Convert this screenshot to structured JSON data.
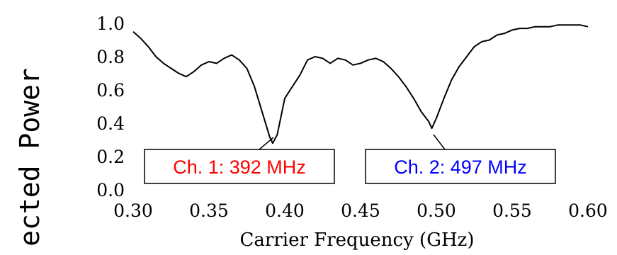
{
  "chart_data": {
    "type": "line",
    "title": "",
    "xlabel": "Carrier Frequency (GHz)",
    "ylabel": "ected Power",
    "xlim": [
      0.3,
      0.6
    ],
    "ylim": [
      0.0,
      1.0
    ],
    "x_ticks": [
      "0.30",
      "0.35",
      "0.40",
      "0.45",
      "0.50",
      "0.55",
      "0.60"
    ],
    "y_ticks": [
      "0.0",
      "0.2",
      "0.4",
      "0.6",
      "0.8",
      "1.0"
    ],
    "grid": false,
    "series": [
      {
        "color": "#000000",
        "x": [
          0.3,
          0.305,
          0.31,
          0.315,
          0.32,
          0.325,
          0.33,
          0.335,
          0.34,
          0.345,
          0.35,
          0.355,
          0.36,
          0.365,
          0.37,
          0.375,
          0.38,
          0.385,
          0.39,
          0.392,
          0.395,
          0.4,
          0.405,
          0.41,
          0.415,
          0.42,
          0.425,
          0.43,
          0.435,
          0.44,
          0.445,
          0.45,
          0.455,
          0.46,
          0.465,
          0.47,
          0.475,
          0.48,
          0.485,
          0.49,
          0.495,
          0.497,
          0.5,
          0.505,
          0.51,
          0.515,
          0.52,
          0.525,
          0.53,
          0.535,
          0.54,
          0.545,
          0.55,
          0.555,
          0.56,
          0.565,
          0.57,
          0.575,
          0.58,
          0.585,
          0.59,
          0.595,
          0.6
        ],
        "y": [
          0.95,
          0.91,
          0.86,
          0.8,
          0.76,
          0.73,
          0.7,
          0.68,
          0.71,
          0.75,
          0.77,
          0.76,
          0.79,
          0.81,
          0.78,
          0.73,
          0.62,
          0.47,
          0.32,
          0.28,
          0.33,
          0.55,
          0.62,
          0.69,
          0.78,
          0.8,
          0.79,
          0.76,
          0.79,
          0.78,
          0.75,
          0.76,
          0.78,
          0.79,
          0.77,
          0.73,
          0.68,
          0.62,
          0.55,
          0.47,
          0.41,
          0.37,
          0.43,
          0.55,
          0.66,
          0.74,
          0.8,
          0.86,
          0.89,
          0.9,
          0.93,
          0.94,
          0.96,
          0.97,
          0.97,
          0.98,
          0.98,
          0.98,
          0.99,
          0.99,
          0.99,
          0.99,
          0.98
        ]
      }
    ],
    "annotations": [
      {
        "text": "Ch. 1:  392 MHz",
        "color": "#ff0000",
        "x": 0.392,
        "y": 0.28
      },
      {
        "text": "Ch. 2:  497 MHz",
        "color": "#0000ff",
        "x": 0.497,
        "y": 0.37
      }
    ]
  }
}
